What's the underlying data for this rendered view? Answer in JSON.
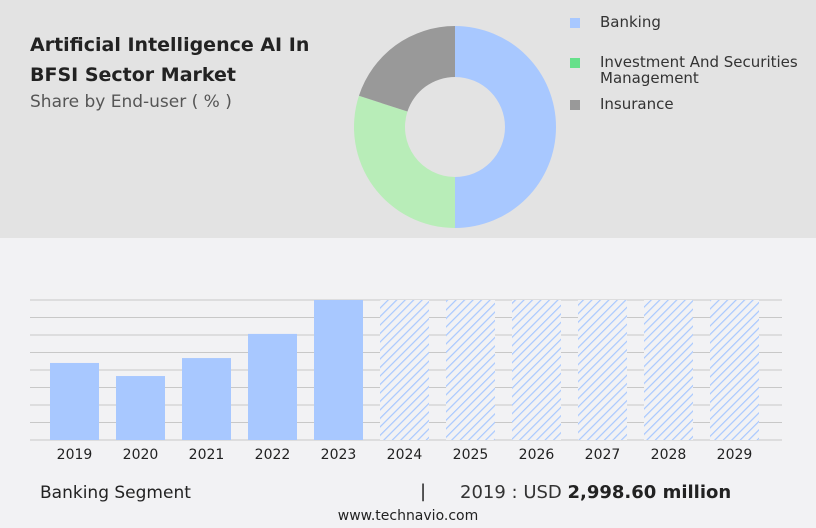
{
  "title": "Artificial Intelligence AI In BFSI Sector Market",
  "subtitle": "Share by End-user ( % )",
  "colors": {
    "banking": "#a8c8ff",
    "investment": "#b8edb8",
    "insurance": "#999999",
    "legend_investment": "#66e08a"
  },
  "footer": {
    "segment": "Banking Segment",
    "separator": "|",
    "year_label": "2019 : USD ",
    "value": "2,998.60 million",
    "site": "www.technavio.com"
  },
  "chart_data": [
    {
      "type": "pie",
      "subtype": "donut",
      "legend_placement": "right",
      "labels": [
        "Banking",
        "Investment And Securities Management",
        "Insurance"
      ],
      "values": [
        50,
        30,
        20
      ]
    },
    {
      "type": "bar",
      "categories": [
        "2019",
        "2020",
        "2021",
        "2022",
        "2023",
        "2024",
        "2025",
        "2026",
        "2027",
        "2028",
        "2029"
      ],
      "values": [
        2998.6,
        2490,
        3190,
        4130,
        5450,
        null,
        null,
        null,
        null,
        null,
        null
      ],
      "forecast_from": "2024",
      "grid": true,
      "xlabel": "",
      "ylabel": ""
    }
  ]
}
